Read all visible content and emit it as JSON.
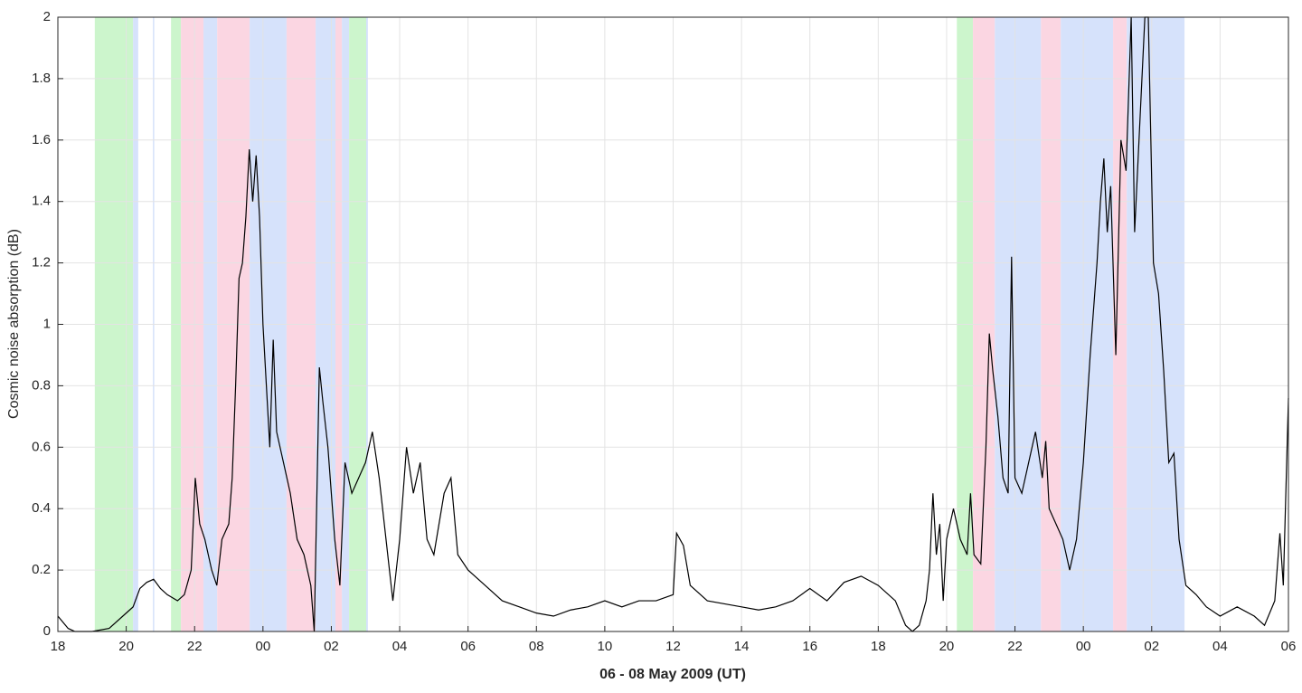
{
  "chart_data": {
    "type": "line",
    "x_label": "06 - 08 May 2009 (UT)",
    "y_label": "Cosmic noise absorption (dB)",
    "xlim": [
      0,
      36
    ],
    "ylim": [
      0,
      2
    ],
    "xticks": [
      {
        "value": 0,
        "label": "18"
      },
      {
        "value": 2,
        "label": "20"
      },
      {
        "value": 4,
        "label": "22"
      },
      {
        "value": 6,
        "label": "00"
      },
      {
        "value": 8,
        "label": "02"
      },
      {
        "value": 10,
        "label": "04"
      },
      {
        "value": 12,
        "label": "06"
      },
      {
        "value": 14,
        "label": "08"
      },
      {
        "value": 16,
        "label": "10"
      },
      {
        "value": 18,
        "label": "12"
      },
      {
        "value": 20,
        "label": "14"
      },
      {
        "value": 22,
        "label": "16"
      },
      {
        "value": 24,
        "label": "18"
      },
      {
        "value": 26,
        "label": "20"
      },
      {
        "value": 28,
        "label": "22"
      },
      {
        "value": 30,
        "label": "00"
      },
      {
        "value": 32,
        "label": "02"
      },
      {
        "value": 34,
        "label": "04"
      },
      {
        "value": 36,
        "label": "06"
      }
    ],
    "yticks": [
      0,
      0.2,
      0.4,
      0.6,
      0.8,
      1,
      1.2,
      1.4,
      1.6,
      1.8,
      2
    ],
    "grid": true,
    "bands": [
      {
        "start": 1.08,
        "end": 2.2,
        "color": "#ccf5cc"
      },
      {
        "start": 2.2,
        "end": 2.35,
        "color": "#d6e2fb"
      },
      {
        "start": 2.78,
        "end": 2.82,
        "color": "#d6e2fb"
      },
      {
        "start": 3.31,
        "end": 3.6,
        "color": "#ccf5cc"
      },
      {
        "start": 3.6,
        "end": 4.26,
        "color": "#fbd6e2"
      },
      {
        "start": 4.26,
        "end": 4.66,
        "color": "#d6e2fb"
      },
      {
        "start": 4.66,
        "end": 5.61,
        "color": "#fbd6e2"
      },
      {
        "start": 5.61,
        "end": 6.69,
        "color": "#d6e2fb"
      },
      {
        "start": 6.69,
        "end": 7.54,
        "color": "#fbd6e2"
      },
      {
        "start": 7.54,
        "end": 8.12,
        "color": "#d6e2fb"
      },
      {
        "start": 8.12,
        "end": 8.31,
        "color": "#fbd6e2"
      },
      {
        "start": 8.31,
        "end": 8.52,
        "color": "#d6e2fb"
      },
      {
        "start": 8.52,
        "end": 9.02,
        "color": "#ccf5cc"
      },
      {
        "start": 9.02,
        "end": 9.07,
        "color": "#d6e2fb"
      },
      {
        "start": 26.3,
        "end": 26.77,
        "color": "#ccf5cc"
      },
      {
        "start": 26.77,
        "end": 27.41,
        "color": "#fbd6e2"
      },
      {
        "start": 27.41,
        "end": 28.76,
        "color": "#d6e2fb"
      },
      {
        "start": 28.76,
        "end": 29.34,
        "color": "#fbd6e2"
      },
      {
        "start": 29.34,
        "end": 30.87,
        "color": "#d6e2fb"
      },
      {
        "start": 30.87,
        "end": 31.27,
        "color": "#fbd6e2"
      },
      {
        "start": 31.27,
        "end": 32.96,
        "color": "#d6e2fb"
      }
    ],
    "color": "#000000",
    "x": [
      0,
      0.3,
      0.5,
      1,
      1.5,
      2,
      2.2,
      2.4,
      2.6,
      2.8,
      3.0,
      3.2,
      3.5,
      3.7,
      3.9,
      4.02,
      4.15,
      4.3,
      4.5,
      4.65,
      4.8,
      5.0,
      5.1,
      5.2,
      5.3,
      5.4,
      5.5,
      5.6,
      5.7,
      5.8,
      5.9,
      6.0,
      6.1,
      6.2,
      6.3,
      6.4,
      6.6,
      6.8,
      7.0,
      7.2,
      7.4,
      7.5,
      7.65,
      7.75,
      7.9,
      8.1,
      8.25,
      8.4,
      8.6,
      8.8,
      9.0,
      9.2,
      9.4,
      9.6,
      9.8,
      10.0,
      10.2,
      10.4,
      10.6,
      10.8,
      11.0,
      11.3,
      11.5,
      11.7,
      12.0,
      12.5,
      13,
      13.5,
      14,
      14.5,
      15,
      15.5,
      16,
      16.5,
      17,
      17.5,
      18,
      18.1,
      18.3,
      18.5,
      19,
      19.5,
      20,
      20.5,
      21,
      21.5,
      22,
      22.5,
      23,
      23.5,
      24,
      24.5,
      24.8,
      25,
      25.2,
      25.4,
      25.5,
      25.6,
      25.7,
      25.8,
      25.9,
      26,
      26.2,
      26.4,
      26.6,
      26.7,
      26.8,
      27.0,
      27.15,
      27.25,
      27.35,
      27.5,
      27.65,
      27.8,
      27.9,
      28.0,
      28.2,
      28.4,
      28.6,
      28.8,
      28.9,
      29.0,
      29.2,
      29.4,
      29.6,
      29.8,
      30.0,
      30.2,
      30.4,
      30.5,
      30.6,
      30.7,
      30.8,
      30.95,
      31.1,
      31.25,
      31.4,
      31.5,
      31.8,
      31.9,
      32.05,
      32.2,
      32.35,
      32.5,
      32.65,
      32.8,
      33,
      33.3,
      33.6,
      34,
      34.5,
      35,
      35.3,
      35.6,
      35.75,
      35.85,
      36
    ],
    "values": [
      0.05,
      0.01,
      0,
      0,
      0.01,
      0.06,
      0.08,
      0.14,
      0.16,
      0.17,
      0.14,
      0.12,
      0.1,
      0.12,
      0.2,
      0.5,
      0.35,
      0.3,
      0.2,
      0.15,
      0.3,
      0.35,
      0.5,
      0.8,
      1.15,
      1.2,
      1.35,
      1.57,
      1.4,
      1.55,
      1.35,
      1.0,
      0.8,
      0.6,
      0.95,
      0.65,
      0.55,
      0.45,
      0.3,
      0.25,
      0.15,
      0.0,
      0.86,
      0.75,
      0.6,
      0.3,
      0.15,
      0.55,
      0.45,
      0.5,
      0.55,
      0.65,
      0.5,
      0.3,
      0.1,
      0.3,
      0.6,
      0.45,
      0.55,
      0.3,
      0.25,
      0.45,
      0.5,
      0.25,
      0.2,
      0.15,
      0.1,
      0.08,
      0.06,
      0.05,
      0.07,
      0.08,
      0.1,
      0.08,
      0.1,
      0.1,
      0.12,
      0.32,
      0.28,
      0.15,
      0.1,
      0.09,
      0.08,
      0.07,
      0.08,
      0.1,
      0.14,
      0.1,
      0.16,
      0.18,
      0.15,
      0.1,
      0.02,
      0.0,
      0.02,
      0.1,
      0.2,
      0.45,
      0.25,
      0.35,
      0.1,
      0.3,
      0.4,
      0.3,
      0.25,
      0.45,
      0.25,
      0.22,
      0.6,
      0.97,
      0.85,
      0.7,
      0.5,
      0.45,
      1.22,
      0.5,
      0.45,
      0.55,
      0.65,
      0.5,
      0.62,
      0.4,
      0.35,
      0.3,
      0.2,
      0.3,
      0.55,
      0.9,
      1.2,
      1.4,
      1.54,
      1.3,
      1.45,
      0.9,
      1.6,
      1.5,
      2.0,
      1.3,
      2.0,
      2.0,
      1.2,
      1.1,
      0.85,
      0.55,
      0.58,
      0.3,
      0.15,
      0.12,
      0.08,
      0.05,
      0.08,
      0.05,
      0.02,
      0.1,
      0.32,
      0.15,
      0.76
    ]
  }
}
